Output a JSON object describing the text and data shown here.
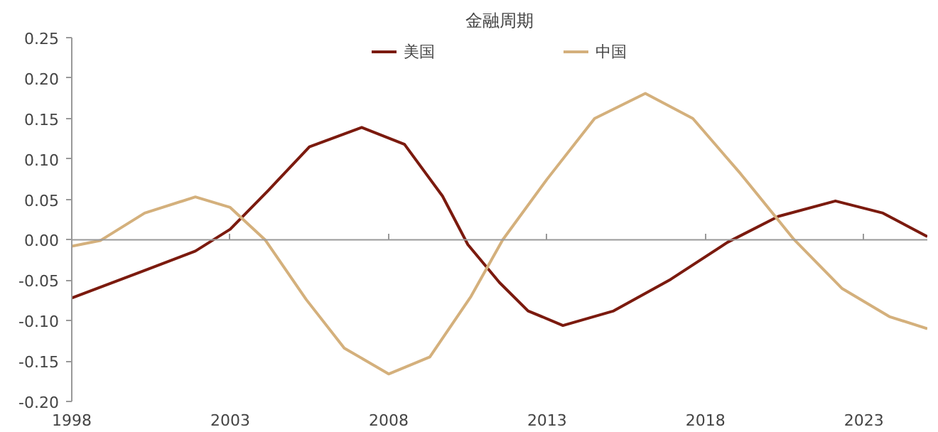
{
  "chart_data": {
    "type": "line",
    "title": "金融周期",
    "legend": "top",
    "ref_lines": [
      {
        "axis": "y",
        "value": 0,
        "color": "#999999"
      }
    ],
    "marker": "none",
    "line_style": "solid",
    "xlim": [
      1998,
      2025
    ],
    "xticks": [
      1998,
      2003,
      2008,
      2013,
      2018,
      2023
    ],
    "ylim": [
      -0.2,
      0.25
    ],
    "yticks": [
      {
        "value": -0.2,
        "label": "-0.20"
      },
      {
        "value": -0.15,
        "label": "-0.15"
      },
      {
        "value": -0.1,
        "label": "-0.10"
      },
      {
        "value": -0.05,
        "label": "-0.05"
      },
      {
        "value": 0,
        "label": "0.00"
      },
      {
        "value": 0.05,
        "label": "0.05"
      },
      {
        "value": 0.1,
        "label": "0.10"
      },
      {
        "value": 0.15,
        "label": "0.15"
      },
      {
        "value": 0.2,
        "label": "0.20"
      },
      {
        "value": 0.25,
        "label": "0.25"
      }
    ],
    "series": [
      {
        "name": "美国",
        "color": "#7b1a0e",
        "x": [
          1998,
          2000.3,
          2001.9,
          2003.0,
          2004.2,
          2005.5,
          2007.15,
          2008.5,
          2009.7,
          2010.5,
          2011.5,
          2012.4,
          2013.5,
          2015.1,
          2016.9,
          2018.7,
          2020.3,
          2022.1,
          2023.6,
          2025.0
        ],
        "values": [
          -0.072,
          -0.038,
          -0.014,
          0.013,
          0.061,
          0.115,
          0.139,
          0.118,
          0.054,
          -0.006,
          -0.053,
          -0.088,
          -0.106,
          -0.088,
          -0.049,
          -0.003,
          0.029,
          0.048,
          0.033,
          0.004
        ]
      },
      {
        "name": "中国",
        "color": "#d4b07c",
        "x": [
          1998,
          1998.9,
          2000.3,
          2001.9,
          2003.0,
          2004.1,
          2005.4,
          2006.6,
          2008.0,
          2009.3,
          2010.6,
          2011.6,
          2013.0,
          2014.5,
          2016.1,
          2017.6,
          2019.1,
          2020.8,
          2022.3,
          2023.8,
          2025.0
        ],
        "values": [
          -0.008,
          -0.001,
          0.033,
          0.053,
          0.04,
          0.0,
          -0.074,
          -0.134,
          -0.166,
          -0.145,
          -0.07,
          0.0,
          0.075,
          0.15,
          0.181,
          0.15,
          0.082,
          0.0,
          -0.06,
          -0.095,
          -0.11
        ]
      }
    ]
  }
}
